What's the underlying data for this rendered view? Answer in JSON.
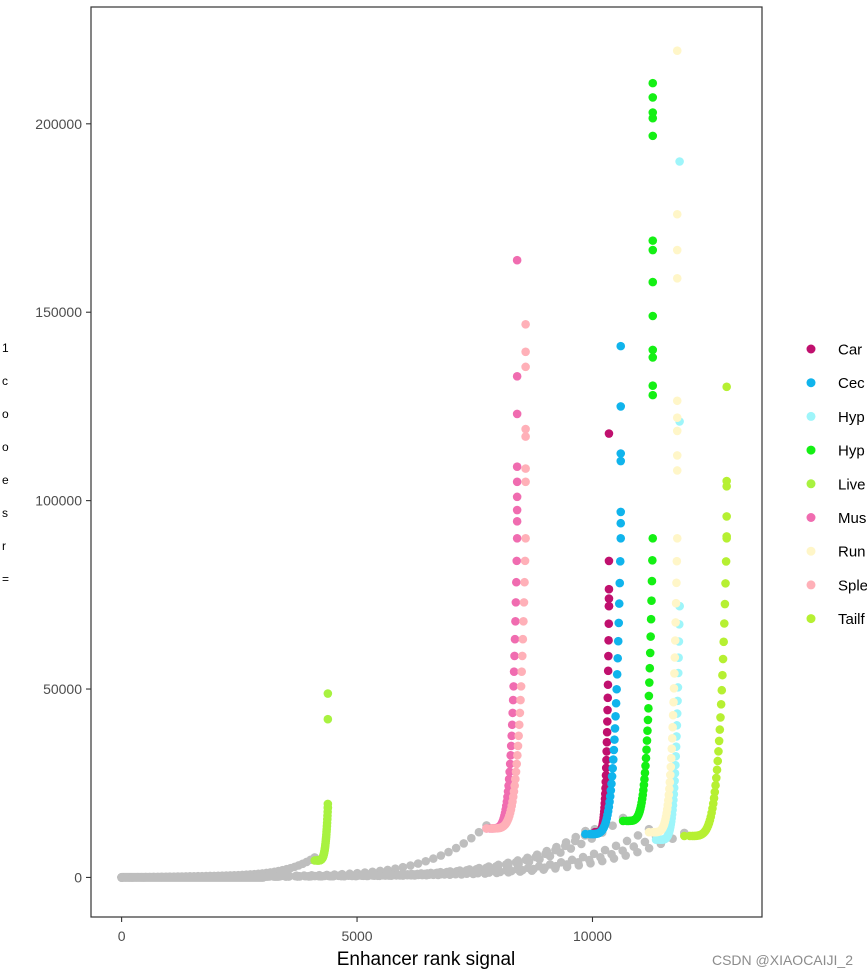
{
  "chart_data": {
    "type": "scatter",
    "title": "",
    "xlabel": "Enhancer rank signal",
    "ylabel_fragments": [
      "1",
      "c",
      "o",
      "o",
      "e",
      "s",
      "r",
      "="
    ],
    "xlim": [
      -650,
      13600
    ],
    "ylim": [
      -10500,
      231000
    ],
    "x_ticks": [
      0,
      5000,
      10000
    ],
    "x_tick_labels": [
      "0",
      "5000",
      "10000"
    ],
    "y_ticks": [
      0,
      50000,
      100000,
      150000,
      200000
    ],
    "y_tick_labels": [
      "0",
      "50000",
      "100000",
      "150000",
      "200000"
    ],
    "grid": false,
    "legend_position": "right",
    "background_color": "#bebebe",
    "background_series": [
      {
        "x_end": 4100,
        "y_end": 4500
      },
      {
        "x_end": 7750,
        "y_end": 13000
      },
      {
        "x_end": 9850,
        "y_end": 11500
      },
      {
        "x_end": 10050,
        "y_end": 12000
      },
      {
        "x_end": 10650,
        "y_end": 15000
      },
      {
        "x_end": 11200,
        "y_end": 12000
      },
      {
        "x_end": 11350,
        "y_end": 10000
      },
      {
        "x_end": 11950,
        "y_end": 11000
      }
    ],
    "series": [
      {
        "name": "Car",
        "color": "#c0106e",
        "x_start": 10050,
        "x_end": 10350,
        "y_start": 12000,
        "tops": [
          117800,
          84000,
          76500,
          74000,
          72000
        ]
      },
      {
        "name": "Cec",
        "color": "#10b4ec",
        "x_start": 9850,
        "x_end": 10600,
        "y_start": 11500,
        "tops": [
          141000,
          125000,
          112500,
          110500,
          97000,
          94000
        ]
      },
      {
        "name": "Hyp",
        "color": "#9ef5fa",
        "x_start": 11350,
        "x_end": 11850,
        "y_start": 10000,
        "tops": [
          190000,
          121000,
          72000
        ]
      },
      {
        "name": "Hyp",
        "color": "#14f014",
        "x_start": 10650,
        "x_end": 11280,
        "y_start": 15000,
        "tops": [
          210800,
          207000,
          203000,
          201500,
          196800,
          169000,
          166500,
          158000,
          149000,
          140000,
          138000,
          130500,
          128000
        ]
      },
      {
        "name": "Live",
        "color": "#a8f240",
        "x_start": 4100,
        "x_end": 4380,
        "y_start": 4500,
        "tops": [
          48800,
          42000,
          19500,
          18500
        ]
      },
      {
        "name": "Mus",
        "color": "#f06cb0",
        "x_start": 7750,
        "x_end": 8400,
        "y_start": 13000,
        "tops": [
          163800,
          133000,
          123000,
          109000,
          105000,
          101000,
          97500,
          94500
        ]
      },
      {
        "name": "Run",
        "color": "#fff6c8",
        "x_start": 11200,
        "x_end": 11800,
        "y_start": 12000,
        "tops": [
          219400,
          176000,
          166500,
          159000,
          126500,
          122000,
          118500,
          112000,
          108000
        ]
      },
      {
        "name": "Sple",
        "color": "#ffb0b8",
        "x_start": 7750,
        "x_end": 8580,
        "y_start": 13000,
        "tops": [
          146800,
          139500,
          135500,
          119000,
          117000,
          108500,
          105000
        ]
      },
      {
        "name": "Tailf",
        "color": "#b6f032",
        "x_start": 11950,
        "x_end": 12850,
        "y_start": 11000,
        "tops": [
          130200,
          105200,
          103800,
          95800,
          90500
        ]
      }
    ]
  },
  "watermark": "CSDN @XIAOCAIJI_2"
}
